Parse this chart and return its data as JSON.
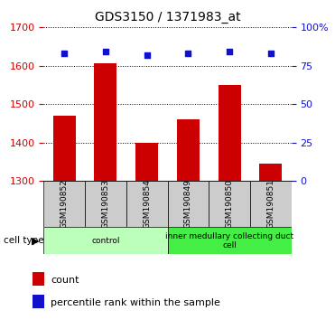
{
  "title": "GDS3150 / 1371983_at",
  "samples": [
    "GSM190852",
    "GSM190853",
    "GSM190854",
    "GSM190849",
    "GSM190850",
    "GSM190851"
  ],
  "counts": [
    1470,
    1607,
    1400,
    1460,
    1550,
    1345
  ],
  "percentiles": [
    83,
    84,
    82,
    83,
    84,
    83
  ],
  "ylim_left": [
    1300,
    1700
  ],
  "ylim_right": [
    0,
    100
  ],
  "bar_color": "#cc0000",
  "dot_color": "#1111cc",
  "bar_bottom": 1300,
  "yticks_left": [
    1300,
    1400,
    1500,
    1600,
    1700
  ],
  "yticks_right": [
    0,
    25,
    50,
    75,
    100
  ],
  "groups": [
    {
      "label": "control",
      "indices": [
        0,
        1,
        2
      ],
      "color": "#bbffbb"
    },
    {
      "label": "inner medullary collecting duct\ncell",
      "indices": [
        3,
        4,
        5
      ],
      "color": "#44ee44"
    }
  ],
  "cell_type_label": "cell type",
  "legend_items": [
    {
      "color": "#cc0000",
      "label": "count"
    },
    {
      "color": "#1111cc",
      "label": "percentile rank within the sample"
    }
  ],
  "tick_color_left": "#cc0000",
  "tick_color_right": "#1111cc",
  "bar_width": 0.55,
  "label_box_color": "#cccccc",
  "title_fontsize": 10,
  "axis_fontsize": 8,
  "label_fontsize": 6.5,
  "legend_fontsize": 8
}
